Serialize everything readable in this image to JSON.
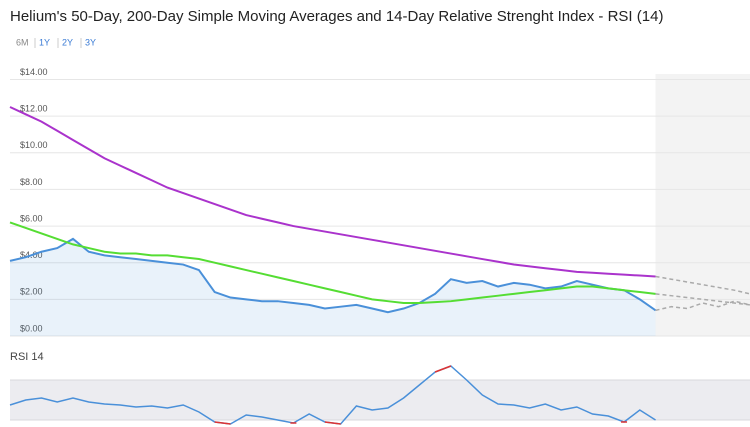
{
  "chart_data": {
    "type": "line",
    "title": "Helium's 50-Day, 200-Day Simple Moving Averages and 14-Day Relative Strenght Index - RSI (14)",
    "ranges": [
      "6M",
      "1Y",
      "2Y",
      "3Y"
    ],
    "ylim": [
      0,
      14.3
    ],
    "yticks": [
      {
        "value": 0,
        "label": "$0.00"
      },
      {
        "value": 2,
        "label": "$2.00"
      },
      {
        "value": 4,
        "label": "$4.00"
      },
      {
        "value": 6,
        "label": "$6.00"
      },
      {
        "value": 8,
        "label": "$8.00"
      },
      {
        "value": 10,
        "label": "$10.00"
      },
      {
        "value": 12,
        "label": "$12.00"
      },
      {
        "value": 14,
        "label": "$14.00"
      }
    ],
    "grid": true,
    "series": [
      {
        "color": "#4a90d9",
        "area": true,
        "values": [
          4.1,
          4.3,
          4.6,
          4.8,
          5.3,
          4.6,
          4.4,
          4.3,
          4.2,
          4.1,
          4.0,
          3.9,
          3.6,
          2.4,
          2.1,
          2.0,
          1.9,
          1.9,
          1.8,
          1.7,
          1.5,
          1.6,
          1.7,
          1.5,
          1.3,
          1.5,
          1.8,
          2.3,
          3.1,
          2.9,
          3.0,
          2.7,
          2.9,
          2.8,
          2.6,
          2.7,
          3.0,
          2.8,
          2.6,
          2.5,
          2.0,
          1.4,
          null,
          null,
          null,
          null,
          null,
          null
        ]
      },
      {
        "color": "#55dd33",
        "values": [
          6.2,
          5.9,
          5.6,
          5.3,
          5.0,
          4.8,
          4.6,
          4.5,
          4.5,
          4.4,
          4.4,
          4.3,
          4.2,
          4.0,
          3.8,
          3.6,
          3.4,
          3.2,
          3.0,
          2.8,
          2.6,
          2.4,
          2.2,
          2.0,
          1.9,
          1.8,
          1.8,
          1.85,
          1.9,
          2.0,
          2.1,
          2.2,
          2.3,
          2.4,
          2.5,
          2.6,
          2.7,
          2.7,
          2.6,
          2.5,
          2.4,
          2.3,
          null,
          null,
          null,
          null,
          null,
          null
        ]
      },
      {
        "color": "#aa33cc",
        "values": [
          12.5,
          12.1,
          11.7,
          11.2,
          10.7,
          10.2,
          9.7,
          9.3,
          8.9,
          8.5,
          8.1,
          7.8,
          7.5,
          7.2,
          6.9,
          6.6,
          6.4,
          6.2,
          6.0,
          5.85,
          5.7,
          5.55,
          5.4,
          5.25,
          5.1,
          4.95,
          4.8,
          4.65,
          4.5,
          4.35,
          4.2,
          4.05,
          3.9,
          3.8,
          3.7,
          3.6,
          3.5,
          3.45,
          3.4,
          3.35,
          3.3,
          3.25,
          null,
          null,
          null,
          null,
          null,
          null
        ]
      },
      {
        "color": "#aaaaaa",
        "dashed": true,
        "values": [
          null,
          null,
          null,
          null,
          null,
          null,
          null,
          null,
          null,
          null,
          null,
          null,
          null,
          null,
          null,
          null,
          null,
          null,
          null,
          null,
          null,
          null,
          null,
          null,
          null,
          null,
          null,
          null,
          null,
          null,
          null,
          null,
          null,
          null,
          null,
          null,
          null,
          null,
          null,
          null,
          null,
          3.25,
          3.1,
          2.95,
          2.8,
          2.65,
          2.5,
          2.3
        ]
      },
      {
        "color": "#aaaaaa",
        "dashed": true,
        "values": [
          null,
          null,
          null,
          null,
          null,
          null,
          null,
          null,
          null,
          null,
          null,
          null,
          null,
          null,
          null,
          null,
          null,
          null,
          null,
          null,
          null,
          null,
          null,
          null,
          null,
          null,
          null,
          null,
          null,
          null,
          null,
          null,
          null,
          null,
          null,
          null,
          null,
          null,
          null,
          null,
          null,
          2.3,
          2.2,
          2.1,
          2.0,
          1.9,
          1.8,
          1.7
        ]
      },
      {
        "color": "#aaaaaa",
        "dashed": true,
        "values": [
          null,
          null,
          null,
          null,
          null,
          null,
          null,
          null,
          null,
          null,
          null,
          null,
          null,
          null,
          null,
          null,
          null,
          null,
          null,
          null,
          null,
          null,
          null,
          null,
          null,
          null,
          null,
          null,
          null,
          null,
          null,
          null,
          null,
          null,
          null,
          null,
          null,
          null,
          null,
          null,
          null,
          1.4,
          1.6,
          1.5,
          1.8,
          1.6,
          1.9,
          1.7
        ]
      }
    ],
    "rsi": {
      "label": "RSI 14",
      "ylim": [
        0,
        100
      ],
      "bands": [
        30,
        70
      ],
      "color": "#4a90d9",
      "extreme_color": "#dd3333",
      "values": [
        45,
        50,
        52,
        48,
        52,
        48,
        46,
        45,
        43,
        44,
        42,
        45,
        38,
        28,
        26,
        35,
        33,
        30,
        27,
        36,
        28,
        26,
        44,
        40,
        42,
        52,
        65,
        78,
        84,
        70,
        55,
        46,
        45,
        42,
        46,
        40,
        43,
        36,
        34,
        28,
        40,
        30,
        null,
        null,
        null,
        null,
        null,
        null
      ]
    }
  }
}
